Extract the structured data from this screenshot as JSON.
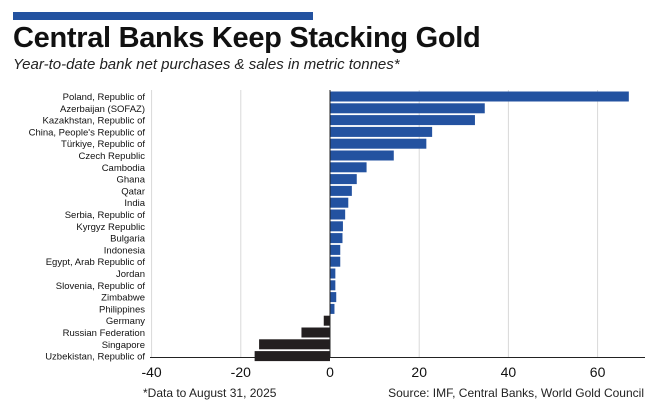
{
  "header": {
    "title": "Central Banks Keep Stacking Gold",
    "subtitle": "Year-to-date bank net purchases & sales in metric tonnes*"
  },
  "footer": {
    "note": "*Data to August 31, 2025",
    "source": "Source: IMF, Central Banks, World Gold Council"
  },
  "colors": {
    "accent": "#2352a0",
    "positive": "#2352a0",
    "negative": "#231f20",
    "grid": "#d9d9d9"
  },
  "chart_data": {
    "type": "bar",
    "orientation": "horizontal",
    "categories": [
      "Poland, Republic of",
      "Azerbaijan (SOFAZ)",
      "Kazakhstan, Republic of",
      "China, People's Republic of",
      "Türkiye, Republic of",
      "Czech Republic",
      "Cambodia",
      "Ghana",
      "Qatar",
      "India",
      "Serbia, Republic of",
      "Kyrgyz Republic",
      "Bulgaria",
      "Indonesia",
      "Egypt, Arab Republic of",
      "Jordan",
      "Slovenia, Republic of",
      "Zimbabwe",
      "Philippines",
      "Germany",
      "Russian Federation",
      "Singapore",
      "Uzbekistan, Republic of"
    ],
    "values": [
      67,
      34.7,
      32.5,
      22.9,
      21.6,
      14.3,
      8.2,
      6.0,
      4.9,
      4.1,
      3.4,
      2.9,
      2.8,
      2.3,
      2.3,
      1.2,
      1.2,
      1.4,
      1.0,
      -1.4,
      -6.4,
      -15.9,
      -16.9
    ],
    "xlim": [
      -40,
      70
    ],
    "xticks": [
      -40,
      -20,
      0,
      20,
      40,
      60
    ],
    "grid": true,
    "xlabel": "",
    "ylabel": ""
  }
}
